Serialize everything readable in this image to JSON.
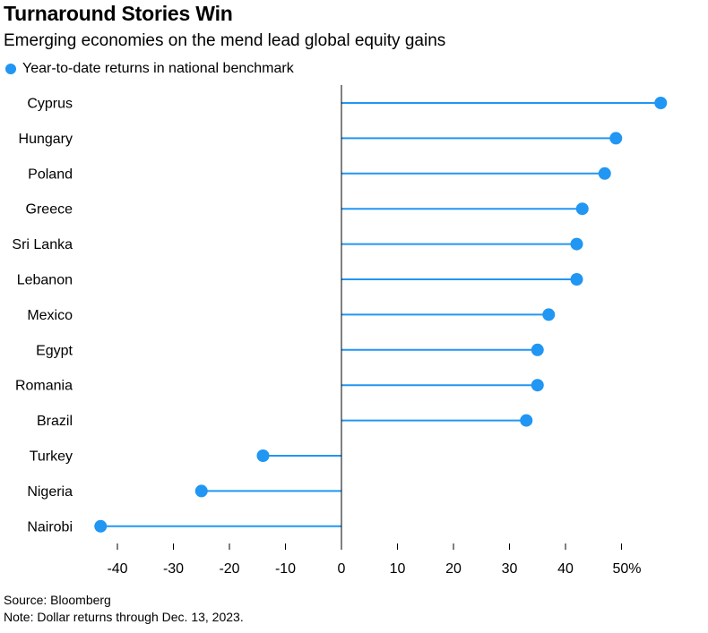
{
  "title": "Turnaround Stories Win",
  "subtitle": "Emerging economies on the mend lead global equity gains",
  "source": "Source: Bloomberg",
  "note": "Note: Dollar returns through Dec. 13, 2023.",
  "colors": {
    "series": "#2196f3",
    "axis": "#000000"
  },
  "chart_data": {
    "type": "lollipop",
    "orientation": "horizontal",
    "categories": [
      "Cyprus",
      "Hungary",
      "Poland",
      "Greece",
      "Sri Lanka",
      "Lebanon",
      "Mexico",
      "Egypt",
      "Romania",
      "Brazil",
      "Turkey",
      "Nigeria",
      "Nairobi"
    ],
    "series": [
      {
        "name": "Year-to-date returns in national benchmark",
        "values": [
          57,
          49,
          47,
          43,
          42,
          42,
          37,
          35,
          35,
          33,
          -14,
          -25,
          -43
        ]
      }
    ],
    "xlim": [
      -45,
      58
    ],
    "xticks": [
      -40,
      -30,
      -20,
      -10,
      0,
      10,
      20,
      30,
      40,
      50
    ],
    "xtick_labels": [
      "-40",
      "-30",
      "-20",
      "-10",
      "0",
      "10",
      "20",
      "30",
      "40",
      "50%"
    ],
    "legend_position": "top-left",
    "grid": false
  }
}
